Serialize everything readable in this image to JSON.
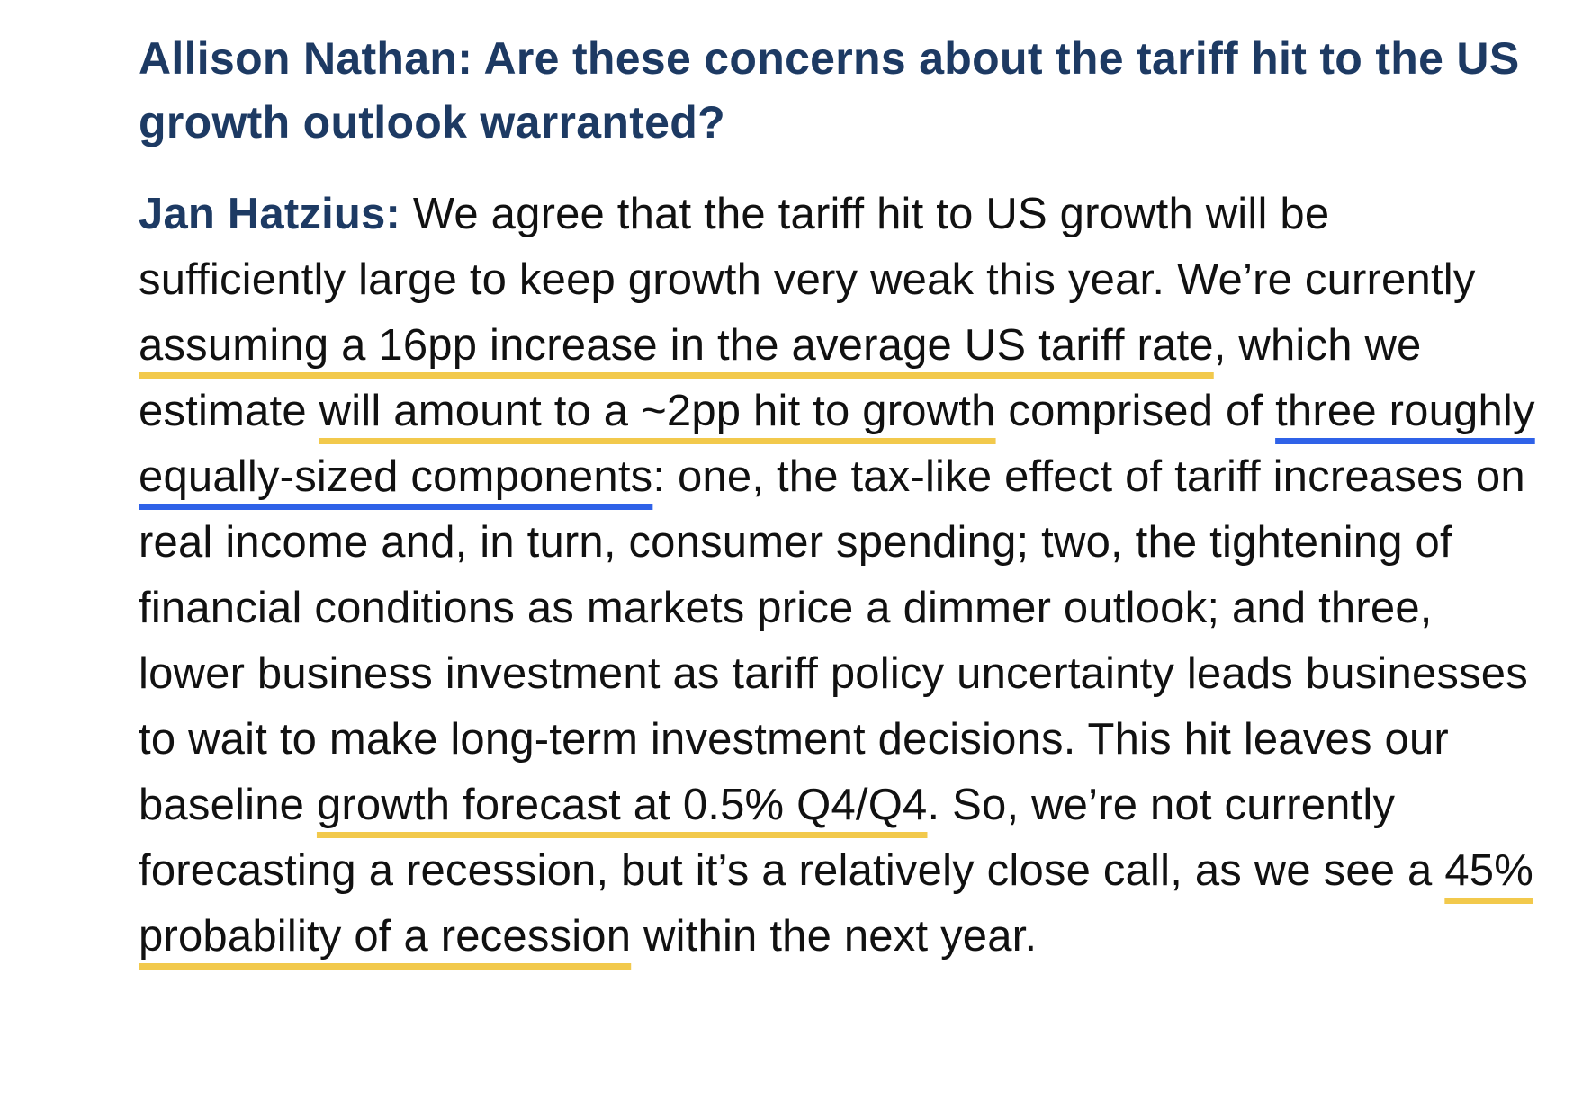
{
  "question": {
    "text": "Allison Nathan: Are these concerns about the tariff hit to the US growth outlook warranted?"
  },
  "answer": {
    "speaker": "Jan Hatzius:",
    "segments": [
      {
        "text": " We agree that the tariff hit to US growth will be sufficiently large to keep growth very weak this year. We’re currently "
      },
      {
        "text": "assuming a 16pp increase in the average US tariff rate",
        "underline": "yellow"
      },
      {
        "text": ", which we estimate "
      },
      {
        "text": "will amount to a ~2pp hit to growth",
        "underline": "yellow"
      },
      {
        "text": " comprised of "
      },
      {
        "text": "three roughly equally-sized components",
        "underline": "blue"
      },
      {
        "text": ": one, the tax-like effect of tariff increases on real income and, in turn, consumer spending; two, the tightening of financial conditions as markets price a dimmer outlook; and three, lower business investment as tariff policy uncertainty leads businesses to wait to make long-term investment decisions. This hit leaves our baseline "
      },
      {
        "text": "growth forecast at 0.5% Q4/Q4",
        "underline": "yellow"
      },
      {
        "text": ". So, we’re not currently forecasting a recession, but it’s a relatively close call, as we see a "
      },
      {
        "text": "45% probability of a recession",
        "underline": "yellow"
      },
      {
        "text": " within the next year."
      }
    ]
  },
  "colors": {
    "heading": "#1d3a63",
    "body_text": "#111111",
    "underline_yellow": "#f2c94c",
    "underline_blue": "#2f62e8"
  }
}
